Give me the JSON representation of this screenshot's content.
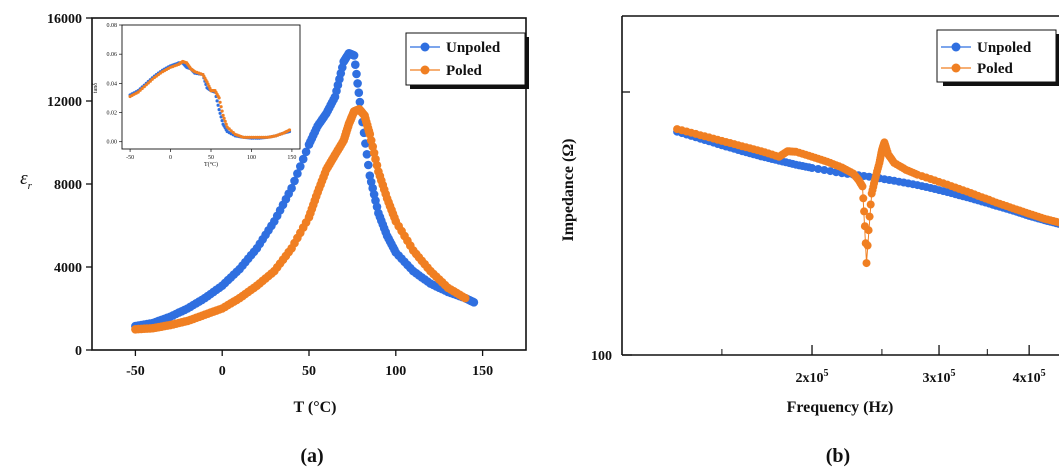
{
  "colors": {
    "unpoled": "#2f6fe0",
    "poled": "#f07f22"
  },
  "panels": {
    "a": "(a)",
    "b": "(b)"
  },
  "chart_data": [
    {
      "panel": "(a)",
      "type": "scatter",
      "xlabel": "T (°C)",
      "ylabel": "ε",
      "ylabel_sub": "r",
      "xlim": [
        -75,
        175
      ],
      "ylim": [
        0,
        16000
      ],
      "xticks": [
        "-50",
        "0",
        "50",
        "100",
        "150"
      ],
      "yticks": [
        "0",
        "4000",
        "8000",
        "12000",
        "16000"
      ],
      "legend": "top-right",
      "series": [
        {
          "name": "Unpoled",
          "color": "#2f6fe0",
          "x": [
            -50,
            -40,
            -30,
            -20,
            -10,
            0,
            10,
            20,
            30,
            40,
            50,
            55,
            60,
            65,
            70,
            73,
            76,
            80,
            85,
            90,
            95,
            100,
            110,
            120,
            130,
            140,
            145
          ],
          "y": [
            1150,
            1300,
            1600,
            2000,
            2500,
            3100,
            3900,
            4900,
            6200,
            7800,
            9900,
            10800,
            11400,
            12200,
            13900,
            14300,
            14200,
            11500,
            8400,
            6600,
            5500,
            4700,
            3800,
            3200,
            2800,
            2500,
            2300
          ]
        },
        {
          "name": "Poled",
          "color": "#f07f22",
          "x": [
            -50,
            -40,
            -30,
            -20,
            -10,
            0,
            10,
            20,
            30,
            40,
            50,
            55,
            60,
            65,
            70,
            73,
            76,
            79,
            82,
            85,
            90,
            95,
            100,
            110,
            120,
            130,
            140
          ],
          "y": [
            1000,
            1050,
            1200,
            1400,
            1700,
            2000,
            2500,
            3100,
            3800,
            4900,
            6400,
            7600,
            8700,
            9400,
            10100,
            10900,
            11500,
            11600,
            11300,
            10400,
            8600,
            7300,
            6200,
            4800,
            3800,
            3000,
            2500
          ]
        }
      ],
      "inset": {
        "ylabel": "tanδ",
        "xlabel": "T(°C)",
        "xlim": [
          -60,
          160
        ],
        "ylim": [
          -0.005,
          0.08
        ],
        "xticks": [
          "-50",
          "0",
          "50",
          "100",
          "150"
        ],
        "yticks": [
          "0.00",
          "0.02",
          "0.04",
          "0.06",
          "0.08"
        ],
        "series": [
          {
            "name": "Unpoled",
            "color": "#2f6fe0",
            "x": [
              -50,
              -40,
              -30,
              -20,
              -10,
              0,
              10,
              15,
              20,
              25,
              30,
              40,
              45,
              50,
              55,
              60,
              65,
              70,
              80,
              90,
              100,
              110,
              120,
              130,
              140,
              147
            ],
            "y": [
              0.032,
              0.035,
              0.04,
              0.045,
              0.049,
              0.052,
              0.054,
              0.054,
              0.051,
              0.05,
              0.047,
              0.046,
              0.037,
              0.035,
              0.034,
              0.022,
              0.012,
              0.007,
              0.004,
              0.003,
              0.0025,
              0.0025,
              0.003,
              0.004,
              0.006,
              0.007
            ]
          },
          {
            "name": "Poled",
            "color": "#f07f22",
            "x": [
              -50,
              -40,
              -30,
              -20,
              -10,
              0,
              10,
              15,
              20,
              25,
              30,
              40,
              45,
              50,
              55,
              60,
              65,
              70,
              80,
              90,
              100,
              110,
              120,
              130,
              140,
              147
            ],
            "y": [
              0.031,
              0.034,
              0.039,
              0.044,
              0.048,
              0.051,
              0.053,
              0.055,
              0.054,
              0.05,
              0.048,
              0.046,
              0.041,
              0.035,
              0.035,
              0.03,
              0.018,
              0.01,
              0.005,
              0.003,
              0.003,
              0.003,
              0.003,
              0.004,
              0.006,
              0.008
            ]
          }
        ]
      }
    },
    {
      "panel": "(b)",
      "type": "line",
      "xlabel": "Frequency (Hz)",
      "ylabel": "Impedance (Ω)",
      "xscale": "log",
      "yscale": "log",
      "xlim": [
        120000,
        440000
      ],
      "ylim": [
        100,
        2000
      ],
      "xticks": [
        {
          "value": 200000,
          "base": "2x10",
          "exp": "5"
        },
        {
          "value": 300000,
          "base": "3x10",
          "exp": "5"
        },
        {
          "value": 400000,
          "base": "4x10",
          "exp": "5"
        }
      ],
      "ytick_label": "100",
      "legend": "top-right",
      "series": [
        {
          "name": "Unpoled",
          "color": "#2f6fe0",
          "x": [
            130000,
            140000,
            150000,
            160000,
            170000,
            180000,
            190000,
            200000,
            220000,
            240000,
            260000,
            280000,
            300000,
            320000,
            340000,
            360000,
            380000,
            400000,
            420000,
            440000
          ],
          "y": [
            680,
            640,
            605,
            575,
            550,
            530,
            512,
            498,
            476,
            462,
            446,
            430,
            412,
            394,
            377,
            360,
            345,
            330,
            318,
            308
          ]
        },
        {
          "name": "Poled",
          "color": "#f07f22",
          "x": [
            130000,
            140000,
            150000,
            160000,
            170000,
            180000,
            185000,
            190000,
            200000,
            210000,
            220000,
            228000,
            232000,
            235000,
            238000,
            242000,
            245000,
            248000,
            250000,
            252000,
            255000,
            260000,
            270000,
            280000,
            300000,
            320000,
            340000,
            360000,
            380000,
            400000,
            420000,
            440000
          ],
          "y": [
            695,
            660,
            628,
            600,
            575,
            548,
            575,
            572,
            548,
            525,
            500,
            475,
            450,
            425,
            220,
            400,
            460,
            520,
            580,
            620,
            560,
            520,
            490,
            470,
            442,
            416,
            392,
            370,
            352,
            336,
            322,
            312
          ]
        }
      ]
    }
  ]
}
